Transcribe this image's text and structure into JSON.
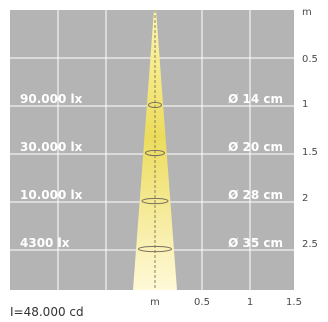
{
  "diagram": {
    "colors": {
      "panel": "#b4b4b4",
      "grid": "#ffffff",
      "beam_tip": "#fff7b0",
      "beam_mid": "#ecdc5c",
      "beam_base": "#fff9d8",
      "ellipse_stroke": "#7a7060"
    },
    "y_unit": "m",
    "y_ticks": [
      "0.5",
      "1",
      "1.5",
      "2",
      "2.5"
    ],
    "x_unit": "m",
    "x_ticks": [
      "0.5",
      "1",
      "1.5"
    ],
    "rows": [
      {
        "distance_m": 1.0,
        "illuminance": "90.000 lx",
        "diameter": "Ø 14 cm"
      },
      {
        "distance_m": 1.5,
        "illuminance": "30.000 lx",
        "diameter": "Ø 20 cm"
      },
      {
        "distance_m": 2.0,
        "illuminance": "10.000 lx",
        "diameter": "Ø 28 cm"
      },
      {
        "distance_m": 2.5,
        "illuminance": "4300 lx",
        "diameter": "Ø 35 cm"
      }
    ],
    "footer": "I=48.000 cd"
  }
}
